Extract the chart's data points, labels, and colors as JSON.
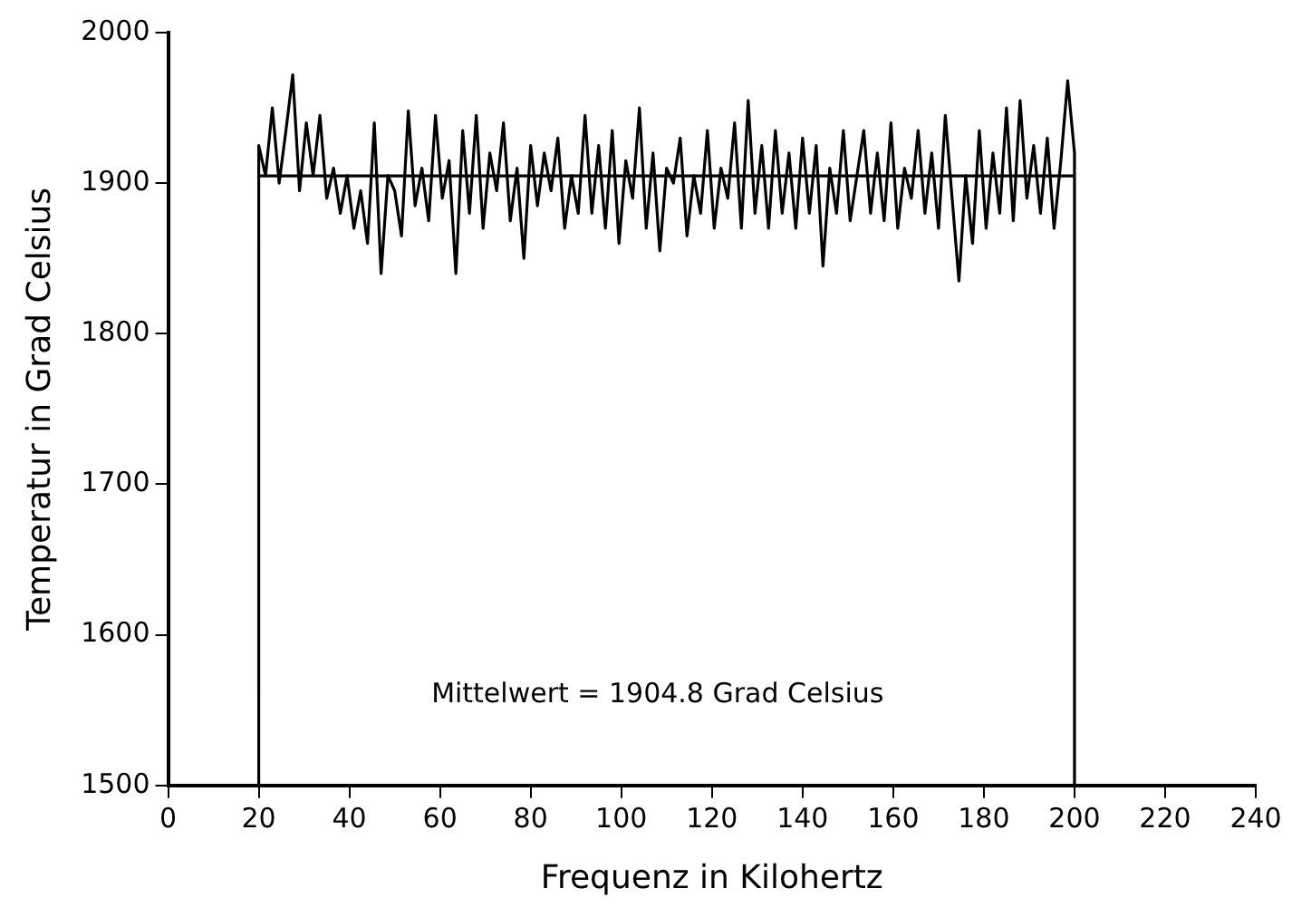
{
  "chart_data": {
    "type": "line",
    "xlabel": "Frequenz in Kilohertz",
    "ylabel": "Temperatur in Grad Celsius",
    "xlim": [
      0,
      240
    ],
    "xticks": [
      0,
      20,
      40,
      60,
      80,
      100,
      120,
      140,
      160,
      180,
      200,
      220,
      240
    ],
    "ylim": [
      1500,
      2000
    ],
    "yticks": [
      1500,
      1600,
      1700,
      1800,
      1900,
      2000
    ],
    "grid": false,
    "legend": false,
    "marker": "none",
    "line_style": "solid",
    "annotations": [
      "Mittelwert = 1904.8 Grad Celsius"
    ],
    "series": [
      {
        "color": "#000000",
        "x": [
          20,
          20,
          21.5,
          23,
          24.5,
          26,
          27.5,
          29,
          30.5,
          32,
          33.5,
          35,
          36.5,
          38,
          39.5,
          41,
          42.5,
          44,
          45.5,
          47,
          48.5,
          50,
          51.5,
          53,
          54.5,
          56,
          57.5,
          59,
          60.5,
          62,
          63.5,
          65,
          66.5,
          68,
          69.5,
          71,
          72.5,
          74,
          75.5,
          77,
          78.5,
          80,
          81.5,
          83,
          84.5,
          86,
          87.5,
          89,
          90.5,
          92,
          93.5,
          95,
          96.5,
          98,
          99.5,
          101,
          102.5,
          104,
          105.5,
          107,
          108.5,
          110,
          111.5,
          113,
          114.5,
          116,
          117.5,
          119,
          120.5,
          122,
          123.5,
          125,
          126.5,
          128,
          129.5,
          131,
          132.5,
          134,
          135.5,
          137,
          138.5,
          140,
          141.5,
          143,
          144.5,
          146,
          147.5,
          149,
          150.5,
          152,
          153.5,
          155,
          156.5,
          158,
          159.5,
          161,
          162.5,
          164,
          165.5,
          167,
          168.5,
          170,
          171.5,
          173,
          174.5,
          176,
          177.5,
          179,
          180.5,
          182,
          183.5,
          185,
          186.5,
          188,
          189.5,
          191,
          192.5,
          194,
          195.5,
          197,
          198.5,
          200,
          200
        ],
        "values": [
          1500,
          1925,
          1905,
          1950,
          1900,
          1935,
          1972,
          1895,
          1940,
          1905,
          1945,
          1890,
          1910,
          1880,
          1905,
          1870,
          1895,
          1860,
          1940,
          1840,
          1905,
          1895,
          1865,
          1948,
          1885,
          1910,
          1875,
          1945,
          1890,
          1915,
          1840,
          1935,
          1880,
          1945,
          1870,
          1920,
          1895,
          1940,
          1875,
          1910,
          1850,
          1925,
          1885,
          1920,
          1895,
          1930,
          1870,
          1905,
          1880,
          1945,
          1880,
          1925,
          1870,
          1935,
          1860,
          1915,
          1890,
          1950,
          1870,
          1920,
          1855,
          1910,
          1900,
          1930,
          1865,
          1905,
          1880,
          1935,
          1870,
          1910,
          1890,
          1940,
          1870,
          1955,
          1880,
          1925,
          1870,
          1935,
          1880,
          1920,
          1870,
          1930,
          1880,
          1925,
          1845,
          1910,
          1880,
          1935,
          1875,
          1905,
          1935,
          1880,
          1920,
          1875,
          1940,
          1870,
          1910,
          1890,
          1935,
          1880,
          1920,
          1870,
          1945,
          1890,
          1835,
          1905,
          1860,
          1935,
          1870,
          1920,
          1880,
          1950,
          1875,
          1955,
          1890,
          1925,
          1880,
          1930,
          1870,
          1915,
          1968,
          1920,
          1500
        ]
      },
      {
        "color": "#000000",
        "x": [
          20,
          200
        ],
        "values": [
          1904.8,
          1904.8
        ]
      }
    ]
  }
}
